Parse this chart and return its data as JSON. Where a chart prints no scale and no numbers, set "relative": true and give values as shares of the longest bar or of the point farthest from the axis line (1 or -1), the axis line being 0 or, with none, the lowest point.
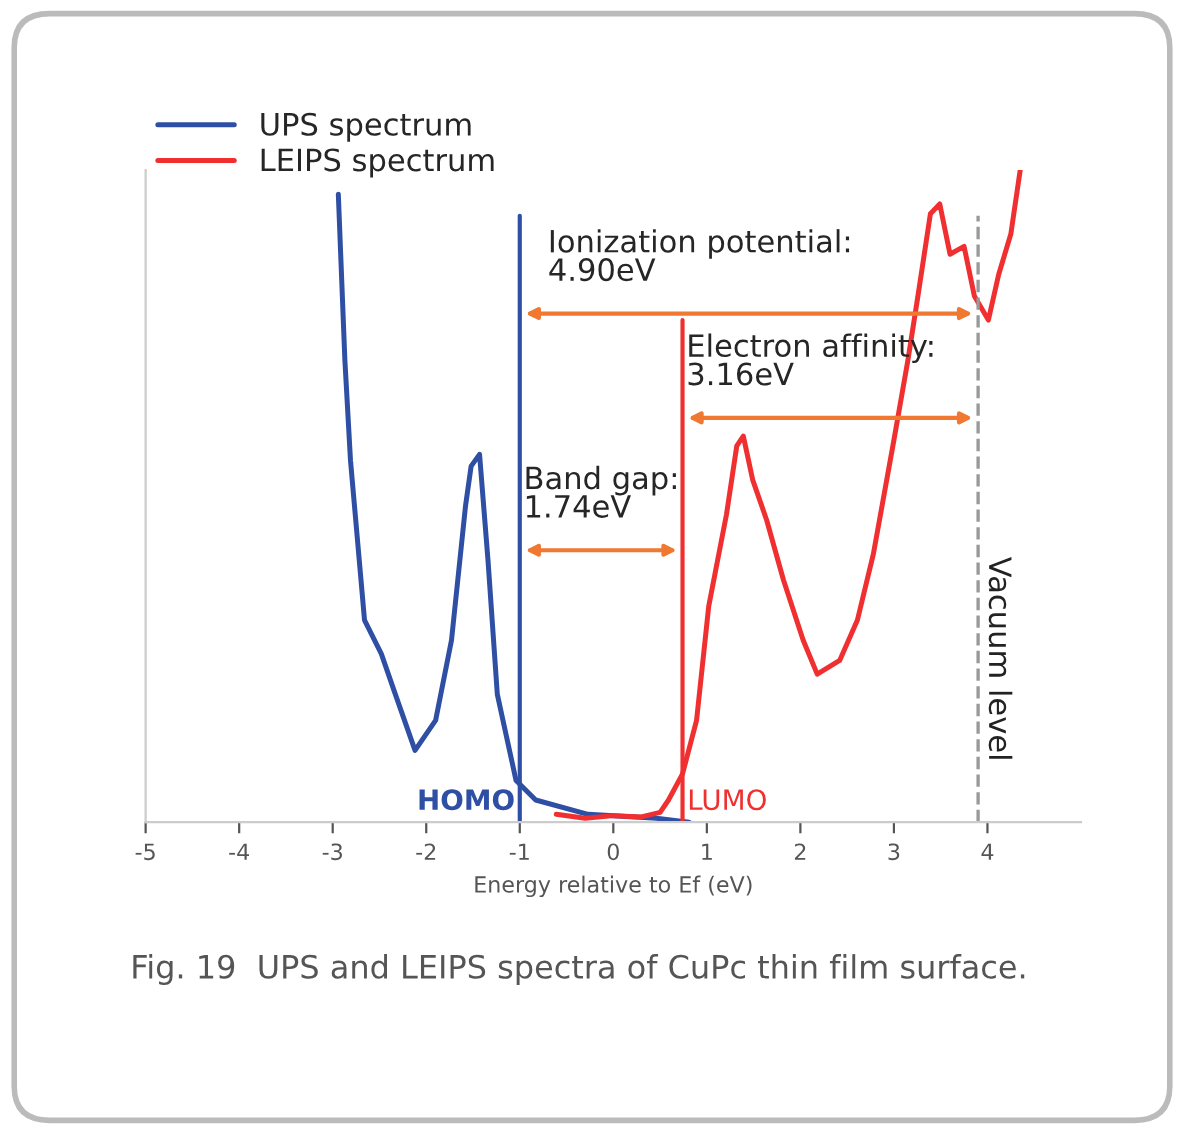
{
  "chart_data": {
    "type": "line",
    "relative": true,
    "xlabel": "Energy relative to Ef (eV)",
    "xlim": [
      -5,
      5
    ],
    "xticks": [
      -5,
      -4,
      -3,
      -2,
      -1,
      0,
      1,
      2,
      3,
      4
    ],
    "legend": "top left",
    "grid": false,
    "series": [
      {
        "name": "UPS spectrum",
        "color": "#2e4fa3",
        "x": [
          -2.94,
          -2.87,
          -2.81,
          -2.66,
          -2.48,
          -2.33,
          -2.12,
          -1.9,
          -1.73,
          -1.58,
          -1.52,
          -1.43,
          -1.34,
          -1.24,
          -1.04,
          -0.83,
          -0.27,
          0.46,
          0.81
        ],
        "values": [
          0.963,
          0.709,
          0.555,
          0.31,
          0.258,
          0.196,
          0.11,
          0.156,
          0.279,
          0.485,
          0.546,
          0.564,
          0.402,
          0.196,
          0.064,
          0.034,
          0.012,
          0.006,
          0
        ]
      },
      {
        "name": "LEIPS spectrum",
        "color": "#f03030",
        "x": [
          -0.61,
          -0.3,
          0,
          0.3,
          0.5,
          0.59,
          0.74,
          0.89,
          1.02,
          1.21,
          1.32,
          1.39,
          1.49,
          1.64,
          1.82,
          2.03,
          2.18,
          2.42,
          2.61,
          2.78,
          3.0,
          3.15,
          3.26,
          3.39,
          3.49,
          3.6,
          3.75,
          3.86,
          4.01,
          4.12,
          4.25,
          4.35
        ],
        "values": [
          0.012,
          0.006,
          0.01,
          0.008,
          0.015,
          0.034,
          0.074,
          0.156,
          0.331,
          0.472,
          0.577,
          0.592,
          0.525,
          0.463,
          0.371,
          0.279,
          0.227,
          0.248,
          0.31,
          0.411,
          0.586,
          0.709,
          0.81,
          0.933,
          0.948,
          0.871,
          0.883,
          0.807,
          0.77,
          0.84,
          0.902,
          1
        ]
      }
    ],
    "ref_lines": [
      {
        "axis": "x",
        "value": -1,
        "color": "#2e4fa3",
        "line_style": "solid"
      },
      {
        "axis": "x",
        "value": 0.74,
        "color": "#f03030",
        "line_style": "solid"
      },
      {
        "axis": "x",
        "value": 3.9,
        "label": "Vacuum level",
        "color": "#999999",
        "line_style": "dashed"
      }
    ],
    "annotations": [
      "Ionization potential:\n4.90eV",
      "Electron affinity:\n3.16eV",
      "Band gap:\n1.74eV",
      "HOMO",
      "LUMO",
      "Fig. 19  UPS and LEIPS spectra of CuPc thin film surface."
    ]
  }
}
